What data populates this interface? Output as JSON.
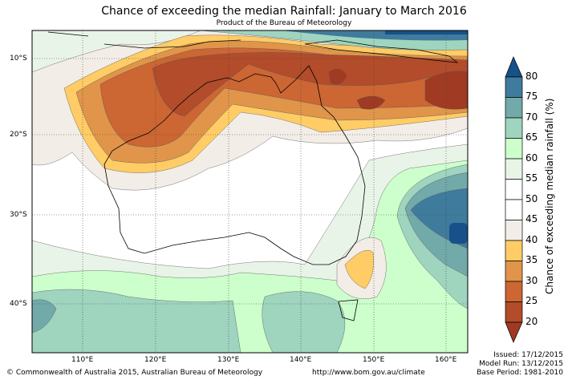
{
  "title": "Chance of exceeding the median Rainfall: January to March 2016",
  "subtitle": "Product of the Bureau of Meteorology",
  "lat_labels": [
    "10°S",
    "20°S",
    "30°S",
    "40°S"
  ],
  "lon_labels": [
    "110°E",
    "120°E",
    "130°E",
    "140°E",
    "150°E",
    "160°E"
  ],
  "colorbar": {
    "title": "Chance of exceeding median rainfall (%)",
    "ticks": [
      "80",
      "75",
      "70",
      "65",
      "60",
      "55",
      "50",
      "45",
      "40",
      "35",
      "30",
      "25",
      "20"
    ],
    "colors": {
      "above80": "#18508a",
      "75-80": "#3f7b9c",
      "70-75": "#72a9a9",
      "65-70": "#9fd4bf",
      "60-65": "#ccffcc",
      "55-60": "#e9f4e8",
      "45-55": "#ffffff",
      "40-45": "#f2ede6",
      "35-40": "#ffcc66",
      "30-35": "#e0954a",
      "25-30": "#cc6633",
      "20-25": "#b24c2a",
      "below20": "#a03a22"
    }
  },
  "footer": {
    "copyright": "© Commonwealth of Australia 2015, Australian Bureau of Meteorology",
    "url": "http://www.bom.gov.au/climate",
    "issued": "Issued: 17/12/2015",
    "model_run": "Model Run: 13/12/2015",
    "base_period": "Base Period: 1981-2010"
  }
}
